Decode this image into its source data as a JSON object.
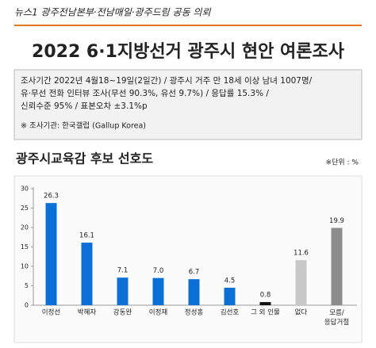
{
  "header": "뉴스1 광주전남본부·전남매일·광주드림 공동 의뢰",
  "title": "2022 6·1지방선거 광주시 현안 여론조사",
  "survey": {
    "lines": [
      "조사기간 2022년 4월18~19일(2일간) / 광주시 거주 만 18세 이상 남녀 1007명/",
      "유·무선 전화 인터뷰 조사(무선 90.3%, 유선 9.7%) / 응답률 15.3% /",
      "신뢰수준 95% / 표본오차 ±3.1%p"
    ],
    "agency": "※ 조사기관: 한국갤럽 (Gallup Korea)"
  },
  "chart_data": {
    "type": "bar",
    "title": "광주시교육감 후보 선호도",
    "unit": "※단위 : %",
    "categories": [
      "이정선",
      "박혜자",
      "강동완",
      "이정재",
      "정성홍",
      "김선호",
      "그 외 인물",
      "없다",
      "모름/응답거절"
    ],
    "values": [
      26.3,
      16.1,
      7.1,
      7.0,
      6.7,
      4.5,
      0.8,
      11.6,
      19.9
    ],
    "value_labels": [
      "26.3",
      "16.1",
      "7.1",
      "7.0",
      "6.7",
      "4.5",
      "0.8",
      "11.6",
      "19.9"
    ],
    "colors": [
      "#0b6fd6",
      "#0b6fd6",
      "#0b6fd6",
      "#0b6fd6",
      "#0b6fd6",
      "#0b6fd6",
      "#111111",
      "#c8c8c8",
      "#8c8c8c"
    ],
    "ylim": [
      0,
      30
    ],
    "yticks": [
      0,
      5,
      10,
      15,
      20,
      25,
      30
    ],
    "grid": false
  }
}
